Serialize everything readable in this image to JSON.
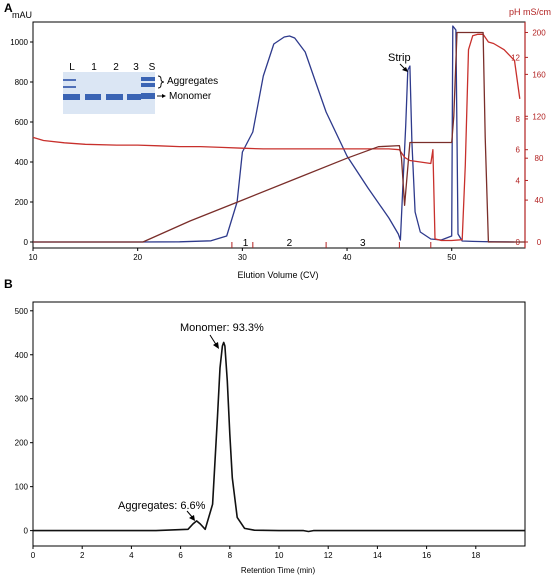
{
  "colors": {
    "absorbance": "#2e3a8c",
    "ph": "#c8302c",
    "conductivity": "#7a2e2a",
    "axis_red": "#b22222",
    "gel_bg": "#dbe6f4",
    "band": "#3a64b4"
  },
  "chart_data": [
    {
      "panel_label": "A",
      "type": "line",
      "xlabel": "Elution Volume (CV)",
      "x_ticks": [
        10,
        20,
        30,
        40,
        50
      ],
      "xlim": [
        10,
        57
      ],
      "ylabel": "mAU",
      "ylim": [
        0,
        1100
      ],
      "y_ticks": [
        0,
        200,
        400,
        600,
        800,
        1000
      ],
      "right_label_ph": "pH",
      "ph_ticks": [
        0,
        4,
        6,
        8,
        12
      ],
      "ph_lim": [
        0,
        14.3
      ],
      "right_label_cond": "mS/cm",
      "cond_ticks": [
        0,
        40,
        80,
        120,
        160,
        200
      ],
      "cond_lim": [
        0,
        210
      ],
      "series": [
        {
          "key": "absorbance",
          "x": [
            10,
            20,
            24,
            27,
            28.5,
            29.5,
            30,
            31,
            32,
            33,
            34,
            34.5,
            35,
            36,
            37,
            38,
            40,
            42,
            44,
            44.9,
            45.1,
            45.3,
            45.6,
            45.8,
            46.0,
            46.2,
            46.5,
            47,
            48,
            49,
            50,
            50.1,
            50.4,
            50.6,
            51,
            52,
            53,
            54,
            56
          ],
          "y": [
            0,
            0,
            1,
            6,
            30,
            200,
            450,
            550,
            830,
            990,
            1025,
            1030,
            1020,
            950,
            800,
            650,
            430,
            270,
            120,
            40,
            10,
            240,
            580,
            860,
            880,
            500,
            150,
            50,
            15,
            10,
            30,
            1080,
            1060,
            40,
            5,
            3,
            2,
            1,
            0
          ]
        },
        {
          "key": "ph",
          "x": [
            10,
            11,
            13,
            15,
            18,
            20,
            22,
            24,
            26,
            28,
            30,
            32,
            35,
            40,
            44,
            45,
            45.5,
            46,
            47,
            48,
            48.2,
            48.4,
            49,
            50,
            51,
            51.3,
            51.6,
            52,
            52.5,
            53,
            53.5,
            54,
            55,
            56,
            56.5
          ],
          "y": [
            6.8,
            6.6,
            6.45,
            6.35,
            6.3,
            6.3,
            6.25,
            6.2,
            6.2,
            6.15,
            6.1,
            6.05,
            6.05,
            6.05,
            6.05,
            6.0,
            5.5,
            5.3,
            5.2,
            5.1,
            6.0,
            0.2,
            0.1,
            0.1,
            0.15,
            5.0,
            12.5,
            13.4,
            13.5,
            13.5,
            13.0,
            12.9,
            12.5,
            11.8,
            9.3
          ]
        },
        {
          "key": "conductivity",
          "x": [
            10,
            20.5,
            25,
            30,
            35,
            40,
            43,
            45,
            45.2,
            45.5,
            46,
            50,
            50.2,
            50.5,
            52,
            53,
            53.2,
            53.5,
            57
          ],
          "y": [
            0,
            0,
            20,
            40,
            60,
            80,
            91,
            92,
            80,
            35,
            95,
            95,
            120,
            200,
            200,
            200,
            100,
            0,
            0
          ]
        }
      ],
      "fraction_labels": [
        "1",
        "2",
        "3"
      ],
      "fraction_markers": [
        29,
        31,
        38,
        45,
        48
      ],
      "strip_label": "Strip",
      "inset": {
        "lane_labels": [
          "L",
          "1",
          "2",
          "3",
          "S"
        ],
        "aggregates_label": "Aggregates",
        "monomer_label": "Monomer"
      }
    },
    {
      "panel_label": "B",
      "type": "line",
      "xlabel": "Retention Time (min)",
      "x_ticks": [
        0,
        2,
        4,
        6,
        8,
        10,
        12,
        14,
        16,
        18
      ],
      "xlim": [
        0,
        20
      ],
      "y_ticks": [
        0,
        100,
        200,
        300,
        400,
        500
      ],
      "ylim": [
        -35,
        520
      ],
      "series": [
        {
          "key": "trace",
          "x": [
            0,
            5,
            6.3,
            6.5,
            6.65,
            6.8,
            7.0,
            7.3,
            7.5,
            7.6,
            7.7,
            7.75,
            7.8,
            7.9,
            8.0,
            8.1,
            8.3,
            8.6,
            9,
            10,
            11,
            11.2,
            11.4,
            12,
            20
          ],
          "y": [
            0,
            0,
            3,
            15,
            22,
            15,
            3,
            60,
            260,
            370,
            420,
            428,
            420,
            340,
            220,
            120,
            30,
            5,
            1,
            0,
            0,
            -2,
            0,
            0,
            0
          ]
        }
      ],
      "annotations": [
        {
          "text": "Monomer: 93.3%",
          "x": 7.75,
          "y": 428
        },
        {
          "text": "Aggregates: 6.6%",
          "x": 6.65,
          "y": 22
        }
      ]
    }
  ]
}
